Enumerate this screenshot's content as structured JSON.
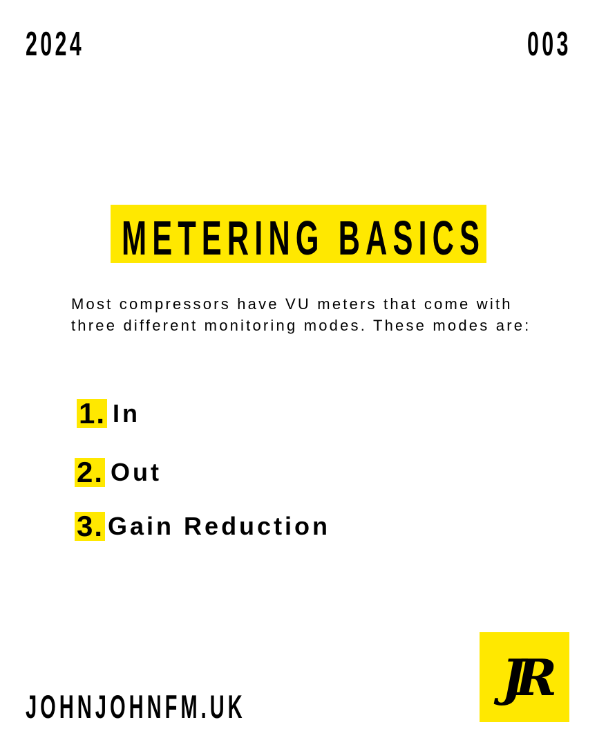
{
  "header": {
    "year": "2024",
    "issue": "003"
  },
  "title": "METERING BASICS",
  "intro": "Most compressors have VU meters that come with three different monitoring modes. These modes are:",
  "modes": [
    {
      "number": "1.",
      "label": "In"
    },
    {
      "number": "2.",
      "label": "Out"
    },
    {
      "number": "3.",
      "label": "Gain Reduction"
    }
  ],
  "footer": {
    "website": "JOHNJOHNFM.UK",
    "logo_text": "JR"
  },
  "colors": {
    "accent": "#FFE800",
    "text": "#000000",
    "background": "#FFFFFF"
  }
}
